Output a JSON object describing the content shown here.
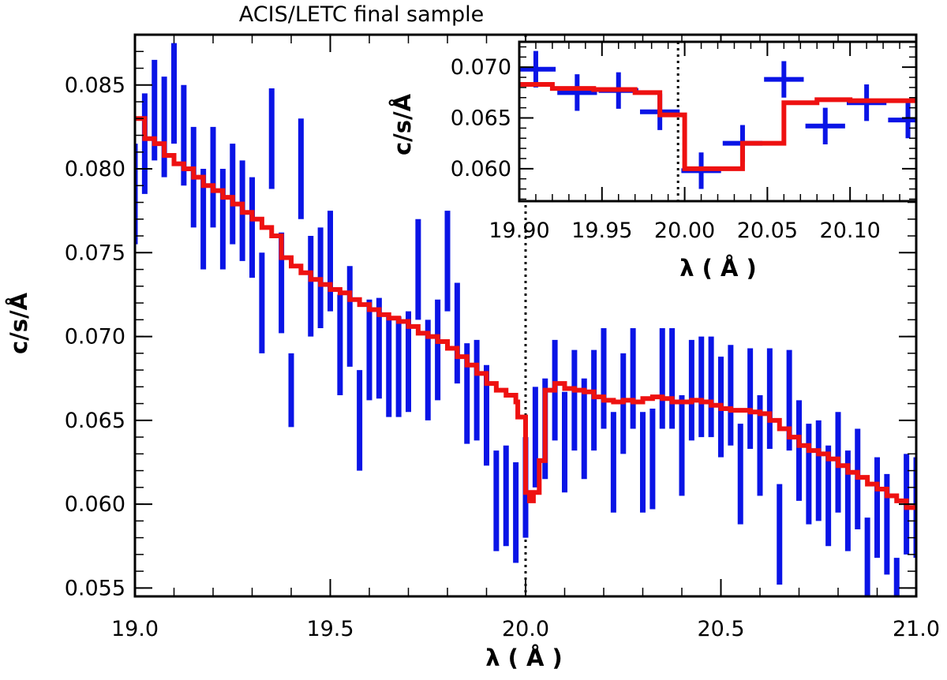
{
  "chart_data": [
    {
      "type": "scatter",
      "panel": "main",
      "title": "ACIS/LETC final sample",
      "xlabel": "λ ( Å )",
      "ylabel": "c/s/Å",
      "xlim": [
        19.0,
        21.0
      ],
      "ylim": [
        0.0545,
        0.088
      ],
      "xticks": [
        19.0,
        19.5,
        20.0,
        20.5,
        21.0
      ],
      "xtick_labels": [
        "19.0",
        "19.5",
        "20.0",
        "20.5",
        "21.0"
      ],
      "yticks": [
        0.055,
        0.06,
        0.065,
        0.07,
        0.075,
        0.08,
        0.085
      ],
      "ytick_labels": [
        "0.055",
        "0.060",
        "0.065",
        "0.070",
        "0.075",
        "0.080",
        "0.085"
      ],
      "xminor_step": 0.1,
      "yminor_step": 0.001,
      "grid": false,
      "vline_x": 20.0,
      "colors": {
        "data": "#0a14e6",
        "model": "#ee1111",
        "axes": "#000000"
      },
      "series": [
        {
          "kind": "errorbar",
          "x": [
            19.0,
            19.025,
            19.05,
            19.075,
            19.1,
            19.125,
            19.15,
            19.175,
            19.2,
            19.225,
            19.25,
            19.275,
            19.3,
            19.325,
            19.35,
            19.375,
            19.4,
            19.425,
            19.45,
            19.475,
            19.5,
            19.525,
            19.55,
            19.575,
            19.6,
            19.625,
            19.65,
            19.675,
            19.7,
            19.725,
            19.75,
            19.775,
            19.8,
            19.825,
            19.85,
            19.875,
            19.9,
            19.925,
            19.95,
            19.975,
            20.0,
            20.025,
            20.05,
            20.075,
            20.1,
            20.125,
            20.15,
            20.175,
            20.2,
            20.225,
            20.25,
            20.275,
            20.3,
            20.325,
            20.35,
            20.375,
            20.4,
            20.425,
            20.45,
            20.475,
            20.5,
            20.525,
            20.55,
            20.575,
            20.6,
            20.625,
            20.65,
            20.675,
            20.7,
            20.725,
            20.75,
            20.775,
            20.8,
            20.825,
            20.85,
            20.875,
            20.9,
            20.925,
            20.95,
            20.975,
            21.0
          ],
          "y": [
            0.0785,
            0.0815,
            0.0835,
            0.0825,
            0.0845,
            0.082,
            0.0795,
            0.077,
            0.0795,
            0.077,
            0.0785,
            0.0775,
            0.0765,
            0.072,
            0.0818,
            0.0732,
            0.0668,
            0.08,
            0.073,
            0.0735,
            0.0745,
            0.0695,
            0.0712,
            0.065,
            0.0692,
            0.0693,
            0.0682,
            0.0682,
            0.0685,
            0.074,
            0.068,
            0.0692,
            0.0745,
            0.0702,
            0.0666,
            0.0668,
            0.0653,
            0.0602,
            0.0605,
            0.0595,
            0.061,
            0.064,
            0.0645,
            0.0668,
            0.0637,
            0.0662,
            0.0645,
            0.0662,
            0.0675,
            0.0625,
            0.066,
            0.0675,
            0.0625,
            0.0627,
            0.0675,
            0.0675,
            0.0635,
            0.0668,
            0.067,
            0.067,
            0.0658,
            0.0665,
            0.0618,
            0.0663,
            0.0635,
            0.0663,
            0.0582,
            0.0662,
            0.0632,
            0.0618,
            0.062,
            0.0605,
            0.0625,
            0.0602,
            0.0615,
            0.0562,
            0.0598,
            0.0588,
            0.0538,
            0.06,
            0.0598
          ],
          "yerr": [
            0.003,
            0.003,
            0.003,
            0.003,
            0.003,
            0.003,
            0.003,
            0.003,
            0.003,
            0.003,
            0.003,
            0.003,
            0.003,
            0.003,
            0.003,
            0.003,
            0.0022,
            0.003,
            0.003,
            0.003,
            0.003,
            0.003,
            0.003,
            0.003,
            0.003,
            0.003,
            0.003,
            0.003,
            0.003,
            0.003,
            0.003,
            0.003,
            0.003,
            0.003,
            0.003,
            0.003,
            0.003,
            0.003,
            0.003,
            0.003,
            0.003,
            0.003,
            0.003,
            0.003,
            0.003,
            0.003,
            0.003,
            0.003,
            0.003,
            0.003,
            0.003,
            0.003,
            0.003,
            0.003,
            0.003,
            0.003,
            0.003,
            0.003,
            0.003,
            0.003,
            0.003,
            0.003,
            0.003,
            0.003,
            0.003,
            0.003,
            0.003,
            0.003,
            0.003,
            0.003,
            0.003,
            0.003,
            0.003,
            0.003,
            0.003,
            0.003,
            0.003,
            0.003,
            0.003,
            0.003,
            0.003
          ],
          "xerr": 0.006
        },
        {
          "kind": "step",
          "x": [
            19.0,
            19.025,
            19.05,
            19.075,
            19.1,
            19.125,
            19.15,
            19.175,
            19.2,
            19.225,
            19.25,
            19.275,
            19.3,
            19.325,
            19.35,
            19.375,
            19.4,
            19.425,
            19.45,
            19.475,
            19.5,
            19.525,
            19.55,
            19.575,
            19.6,
            19.625,
            19.65,
            19.675,
            19.7,
            19.725,
            19.75,
            19.775,
            19.8,
            19.825,
            19.85,
            19.875,
            19.9,
            19.925,
            19.95,
            19.975,
            19.98,
            20.0,
            20.01,
            20.02,
            20.035,
            20.05,
            20.075,
            20.1,
            20.125,
            20.15,
            20.175,
            20.2,
            20.225,
            20.25,
            20.275,
            20.3,
            20.325,
            20.35,
            20.375,
            20.4,
            20.425,
            20.45,
            20.475,
            20.5,
            20.525,
            20.55,
            20.575,
            20.6,
            20.625,
            20.65,
            20.675,
            20.7,
            20.725,
            20.75,
            20.775,
            20.8,
            20.825,
            20.85,
            20.875,
            20.9,
            20.925,
            20.95,
            20.975,
            21.0
          ],
          "y": [
            0.083,
            0.0818,
            0.0815,
            0.0808,
            0.0803,
            0.08,
            0.0795,
            0.079,
            0.0787,
            0.0783,
            0.0779,
            0.0774,
            0.077,
            0.0765,
            0.076,
            0.0747,
            0.0742,
            0.0738,
            0.0734,
            0.0731,
            0.0728,
            0.0726,
            0.0722,
            0.0719,
            0.0716,
            0.0713,
            0.0711,
            0.0709,
            0.0706,
            0.0702,
            0.07,
            0.0697,
            0.0693,
            0.0688,
            0.0683,
            0.0678,
            0.0672,
            0.0668,
            0.0665,
            0.0661,
            0.0652,
            0.0607,
            0.0602,
            0.0607,
            0.0626,
            0.0668,
            0.0672,
            0.0669,
            0.0668,
            0.0667,
            0.0664,
            0.0662,
            0.0661,
            0.0662,
            0.0661,
            0.0663,
            0.0664,
            0.0663,
            0.0661,
            0.0661,
            0.0662,
            0.0661,
            0.0659,
            0.0657,
            0.0656,
            0.0656,
            0.0655,
            0.0654,
            0.065,
            0.0645,
            0.064,
            0.0635,
            0.0632,
            0.063,
            0.0627,
            0.0623,
            0.0619,
            0.0616,
            0.0612,
            0.0609,
            0.0605,
            0.0602,
            0.0598,
            0.0597
          ]
        }
      ]
    },
    {
      "type": "scatter",
      "panel": "inset",
      "xlabel": "λ ( Å )",
      "ylabel": "c/s/Å",
      "xlim": [
        19.9,
        20.14
      ],
      "ylim": [
        0.0568,
        0.0725
      ],
      "xticks": [
        19.9,
        19.95,
        20.0,
        20.05,
        20.1
      ],
      "xtick_labels": [
        "19.90",
        "19.95",
        "20.00",
        "20.05",
        "20.10"
      ],
      "yticks": [
        0.06,
        0.065,
        0.07
      ],
      "ytick_labels": [
        "0.060",
        "0.065",
        "0.070"
      ],
      "xminor_step": 0.01,
      "yminor_step": 0.001,
      "vline_x": 19.996,
      "series": [
        {
          "kind": "errorbar",
          "x": [
            19.91,
            19.935,
            19.96,
            19.985,
            20.01,
            20.035,
            20.06,
            20.085,
            20.11,
            20.135
          ],
          "y": [
            0.0698,
            0.0675,
            0.0677,
            0.0656,
            0.0598,
            0.0625,
            0.0688,
            0.0642,
            0.0665,
            0.0648
          ],
          "yerr": [
            0.0018,
            0.0018,
            0.0018,
            0.0018,
            0.0018,
            0.0018,
            0.0018,
            0.0018,
            0.0018,
            0.0018
          ],
          "xerr": 0.012
        },
        {
          "kind": "step",
          "x": [
            19.9,
            19.92,
            19.945,
            19.97,
            19.985,
            20.0,
            20.02,
            20.035,
            20.048,
            20.06,
            20.08,
            20.1,
            20.12,
            20.14
          ],
          "y": [
            0.0683,
            0.0679,
            0.0678,
            0.0675,
            0.0653,
            0.06,
            0.06,
            0.0625,
            0.0625,
            0.0665,
            0.0668,
            0.0667,
            0.0667,
            0.0667
          ]
        }
      ]
    }
  ]
}
